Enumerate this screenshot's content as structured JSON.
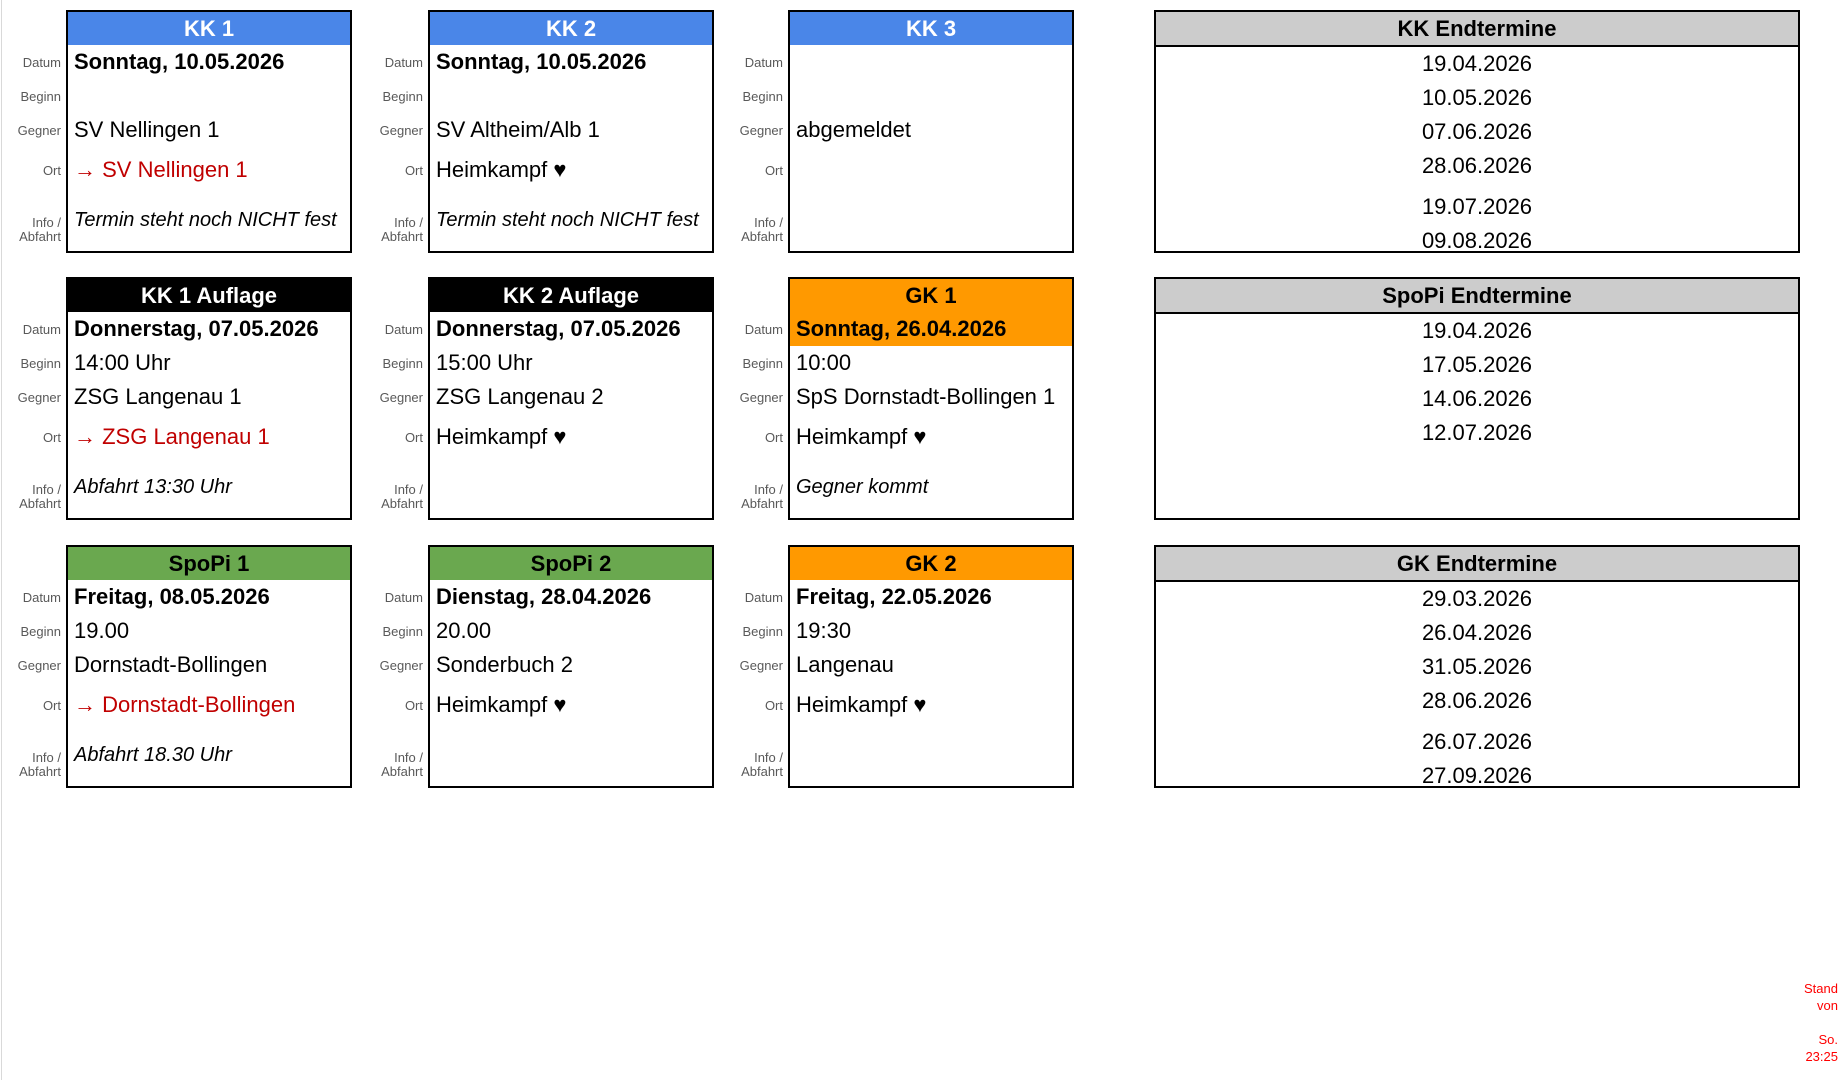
{
  "row_labels": {
    "datum": "Datum",
    "beginn": "Beginn",
    "gegner": "Gegner",
    "ort": "Ort",
    "info_line1": "Info /",
    "info_line2": "Abfahrt"
  },
  "colors": {
    "header_blue": "#4a86e8",
    "header_black": "#000000",
    "header_green": "#6aa84f",
    "header_orange": "#ff9900",
    "header_gray": "#cccccc",
    "away_red": "#c00000",
    "note_red": "#ff0000",
    "label_gray": "#595959"
  },
  "cards": [
    {
      "title": "KK 1",
      "variant": "blue",
      "row": 1,
      "col": 1,
      "datum": "Sonntag, 10.05.2026",
      "beginn": "",
      "gegner": "SV Nellingen 1",
      "ort": "→ SV Nellingen 1",
      "ort_red": true,
      "info": "Termin steht noch NICHT fest",
      "datum_on_header_color": false
    },
    {
      "title": "KK 2",
      "variant": "blue",
      "row": 1,
      "col": 2,
      "datum": "Sonntag, 10.05.2026",
      "beginn": "",
      "gegner": "SV Altheim/Alb 1",
      "ort": "Heimkampf ♥",
      "ort_red": false,
      "info": "Termin steht noch NICHT fest",
      "datum_on_header_color": false
    },
    {
      "title": "KK 3",
      "variant": "blue",
      "row": 1,
      "col": 3,
      "datum": "",
      "beginn": "",
      "gegner": "abgemeldet",
      "ort": "",
      "ort_red": false,
      "info": "",
      "datum_on_header_color": false
    },
    {
      "title": "KK 1 Auflage",
      "variant": "black",
      "row": 2,
      "col": 1,
      "datum": "Donnerstag, 07.05.2026",
      "beginn": "14:00 Uhr",
      "gegner": "ZSG Langenau 1",
      "ort": "→ ZSG Langenau 1",
      "ort_red": true,
      "info": "Abfahrt 13:30 Uhr",
      "datum_on_header_color": false
    },
    {
      "title": "KK 2 Auflage",
      "variant": "black",
      "row": 2,
      "col": 2,
      "datum": "Donnerstag, 07.05.2026",
      "beginn": "15:00 Uhr",
      "gegner": "ZSG Langenau 2",
      "ort": "Heimkampf ♥",
      "ort_red": false,
      "info": "",
      "datum_on_header_color": false
    },
    {
      "title": "GK 1",
      "variant": "orange",
      "row": 2,
      "col": 3,
      "datum": "Sonntag, 26.04.2026",
      "beginn": "10:00",
      "gegner": "SpS Dornstadt-Bollingen 1",
      "ort": "Heimkampf ♥",
      "ort_red": false,
      "info": "Gegner kommt",
      "datum_on_header_color": true
    },
    {
      "title": "SpoPi 1",
      "variant": "green",
      "row": 3,
      "col": 1,
      "datum": "Freitag, 08.05.2026",
      "beginn": "19.00",
      "gegner": "Dornstadt-Bollingen",
      "ort": "→ Dornstadt-Bollingen",
      "ort_red": true,
      "info": "Abfahrt 18.30 Uhr",
      "datum_on_header_color": false
    },
    {
      "title": "SpoPi 2",
      "variant": "green",
      "row": 3,
      "col": 2,
      "datum": "Dienstag, 28.04.2026",
      "beginn": "20.00",
      "gegner": "Sonderbuch 2",
      "ort": "Heimkampf ♥",
      "ort_red": false,
      "info": "",
      "datum_on_header_color": false
    },
    {
      "title": "GK 2",
      "variant": "orange",
      "row": 3,
      "col": 3,
      "datum": "Freitag, 22.05.2026",
      "beginn": "19:30",
      "gegner": "Langenau",
      "ort": "Heimkampf ♥",
      "ort_red": false,
      "info": "",
      "datum_on_header_color": false
    }
  ],
  "endtermine_tables": [
    {
      "title": "KK Endtermine",
      "row": 1,
      "gap_before_index": 4,
      "dates": [
        "19.04.2026",
        "10.05.2026",
        "07.06.2026",
        "28.06.2026",
        "19.07.2026",
        "09.08.2026"
      ]
    },
    {
      "title": "SpoPi Endtermine",
      "row": 2,
      "gap_before_index": null,
      "dates": [
        "19.04.2026",
        "17.05.2026",
        "14.06.2026",
        "12.07.2026"
      ]
    },
    {
      "title": "GK Endtermine",
      "row": 3,
      "gap_before_index": 4,
      "dates": [
        "29.03.2026",
        "26.04.2026",
        "31.05.2026",
        "28.06.2026",
        "26.07.2026",
        "27.09.2026"
      ]
    }
  ],
  "stand_note": {
    "lines": [
      "Stand",
      "von",
      "",
      "So.",
      "23:25"
    ]
  }
}
